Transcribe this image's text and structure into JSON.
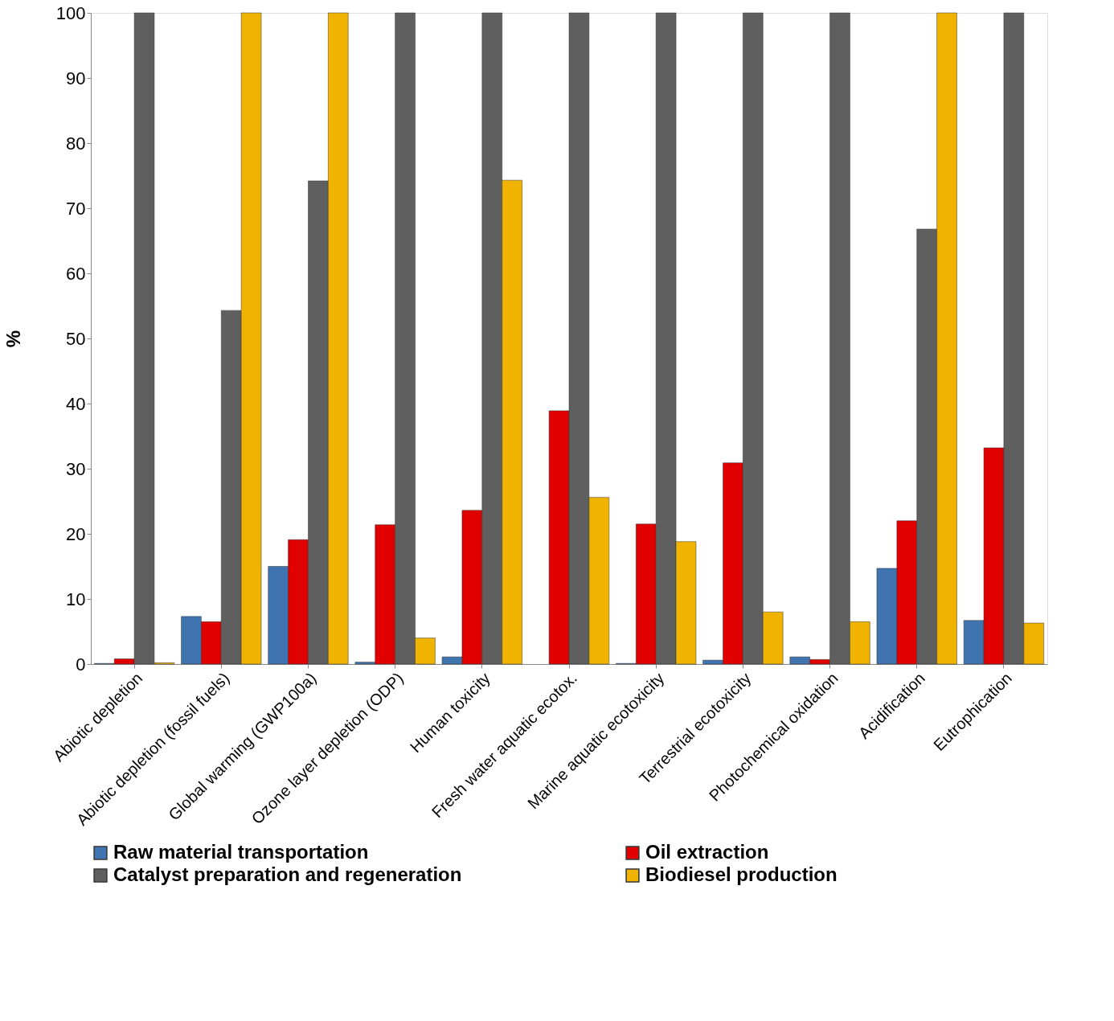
{
  "chart_data": {
    "type": "bar",
    "ylabel": "%",
    "categories": [
      "Abiotic depletion",
      "Abiotic depletion (fossil fuels)",
      "Global warming (GWP100a)",
      "Ozone layer depletion (ODP)",
      "Human toxicity",
      "Fresh water aquatic ecotox.",
      "Marine aquatic ecotoxicity",
      "Terrestrial ecotoxicity",
      "Photochemical oxidation",
      "Acidification",
      "Eutrophication"
    ],
    "series": [
      {
        "name": "Raw material transportation",
        "color": "#3f74b0",
        "values": [
          0.1,
          7.3,
          15,
          0.3,
          1.1,
          null,
          0.1,
          0.6,
          1.1,
          14.7,
          6.7
        ]
      },
      {
        "name": "Oil extraction",
        "color": "#e00000",
        "values": [
          0.8,
          6.5,
          19.1,
          21.4,
          23.6,
          38.9,
          21.5,
          30.9,
          0.7,
          22,
          33.2
        ]
      },
      {
        "name": "Catalyst preparation and regeneration",
        "color": "#5f5f5f",
        "values": [
          100,
          54.3,
          74.2,
          100,
          100,
          100,
          100,
          100,
          100,
          66.8,
          100
        ]
      },
      {
        "name": "Biodiesel production",
        "color": "#f0b400",
        "values": [
          0.2,
          100,
          100,
          4,
          74.3,
          25.6,
          18.8,
          8,
          6.5,
          100,
          6.3
        ]
      }
    ],
    "ylim": [
      0,
      100
    ],
    "yticks": [
      0,
      10,
      20,
      30,
      40,
      50,
      60,
      70,
      80,
      90,
      100
    ],
    "grid": false,
    "legend": "bottom"
  }
}
